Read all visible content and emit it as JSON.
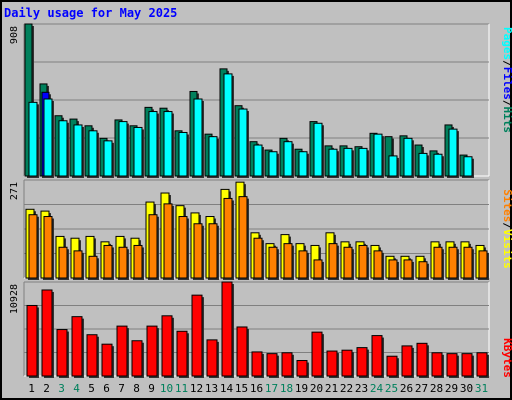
{
  "title": "Daily usage for May 2025",
  "colors": {
    "hits": "#00805c",
    "files": "#0000ff",
    "pages": "#00ffff",
    "visits": "#ffff00",
    "sites": "#ff8000",
    "kbytes": "#ff0000",
    "weekend_day": "#00805c",
    "weekday": "#000000"
  },
  "chart_data": [
    {
      "type": "bar",
      "panel": "top",
      "ymax_label": "908",
      "ylim": [
        0,
        908
      ],
      "categories": [
        "1",
        "2",
        "3",
        "4",
        "5",
        "6",
        "7",
        "8",
        "9",
        "10",
        "11",
        "12",
        "13",
        "14",
        "15",
        "16",
        "17",
        "18",
        "19",
        "20",
        "21",
        "22",
        "23",
        "24",
        "25",
        "26",
        "27",
        "28",
        "29",
        "30",
        "31"
      ],
      "series": [
        {
          "name": "Hits",
          "values": [
            908,
            550,
            360,
            340,
            300,
            225,
            335,
            300,
            410,
            405,
            270,
            505,
            250,
            640,
            420,
            205,
            155,
            225,
            160,
            325,
            180,
            180,
            175,
            255,
            235,
            240,
            185,
            150,
            305,
            125,
            0
          ]
        },
        {
          "name": "Files",
          "values": [
            0,
            500,
            0,
            0,
            0,
            0,
            0,
            0,
            0,
            0,
            0,
            0,
            0,
            0,
            0,
            0,
            0,
            0,
            0,
            0,
            0,
            0,
            0,
            0,
            0,
            0,
            0,
            0,
            0,
            0,
            0
          ]
        },
        {
          "name": "Pages",
          "values": [
            440,
            460,
            330,
            305,
            270,
            210,
            325,
            290,
            385,
            385,
            260,
            460,
            235,
            610,
            400,
            185,
            145,
            205,
            145,
            315,
            160,
            165,
            165,
            250,
            120,
            225,
            135,
            130,
            280,
            115,
            0
          ]
        }
      ],
      "right_label": [
        "Pages",
        "Files",
        "Hits"
      ]
    },
    {
      "type": "bar",
      "panel": "middle",
      "ymax_label": "271",
      "ylim": [
        0,
        271
      ],
      "categories": [
        "1",
        "2",
        "3",
        "4",
        "5",
        "6",
        "7",
        "8",
        "9",
        "10",
        "11",
        "12",
        "13",
        "14",
        "15",
        "16",
        "17",
        "18",
        "19",
        "20",
        "21",
        "22",
        "23",
        "24",
        "25",
        "26",
        "27",
        "28",
        "29",
        "30",
        "31"
      ],
      "series": [
        {
          "name": "Visits",
          "values": [
            190,
            185,
            115,
            110,
            115,
            100,
            115,
            110,
            210,
            235,
            200,
            180,
            170,
            245,
            265,
            125,
            95,
            120,
            95,
            90,
            125,
            100,
            100,
            90,
            60,
            60,
            60,
            100,
            100,
            100,
            90
          ]
        },
        {
          "name": "Sites",
          "values": [
            175,
            170,
            85,
            75,
            60,
            90,
            85,
            90,
            175,
            205,
            170,
            150,
            150,
            220,
            225,
            110,
            85,
            95,
            75,
            50,
            95,
            85,
            90,
            75,
            50,
            50,
            45,
            85,
            85,
            85,
            75
          ]
        }
      ],
      "right_label": [
        "Sites",
        "Visits"
      ]
    },
    {
      "type": "bar",
      "panel": "bottom",
      "ymax_label": "10928",
      "ylim": [
        0,
        10928
      ],
      "categories": [
        "1",
        "2",
        "3",
        "4",
        "5",
        "6",
        "7",
        "8",
        "9",
        "10",
        "11",
        "12",
        "13",
        "14",
        "15",
        "16",
        "17",
        "18",
        "19",
        "20",
        "21",
        "22",
        "23",
        "24",
        "25",
        "26",
        "27",
        "28",
        "29",
        "30",
        "31"
      ],
      "series": [
        {
          "name": "KBytes",
          "values": [
            8200,
            10000,
            5400,
            6900,
            4800,
            3700,
            5800,
            4100,
            5800,
            7000,
            5200,
            9400,
            4200,
            10928,
            5700,
            2800,
            2600,
            2700,
            1800,
            5100,
            2900,
            3000,
            3300,
            4700,
            2300,
            3500,
            3800,
            2700,
            2600,
            2600,
            2700
          ]
        }
      ],
      "right_label": [
        "KBytes"
      ]
    }
  ],
  "weekend_days": [
    "3",
    "4",
    "10",
    "11",
    "17",
    "18",
    "24",
    "25",
    "31"
  ]
}
